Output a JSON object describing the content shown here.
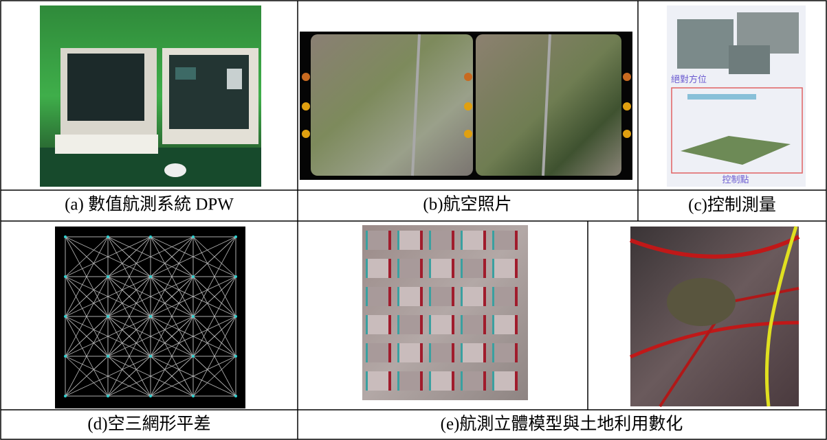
{
  "panels": {
    "a": {
      "caption": "(a) 數值航測系統 DPW"
    },
    "b": {
      "caption": "(b)航空照片"
    },
    "c": {
      "caption": "(c)控制測量",
      "image_texts": [
        "絕對方位",
        "控制點"
      ]
    },
    "d": {
      "caption": "(d)空三網形平差"
    },
    "e": {
      "caption": "(e)航測立體模型與土地利用數化"
    }
  }
}
